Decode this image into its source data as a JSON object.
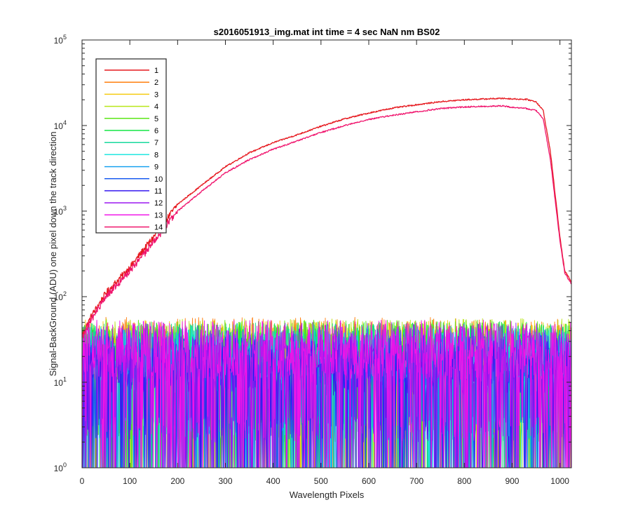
{
  "chart_data": {
    "type": "line",
    "title": "s2016051913_img.mat int time = 4 sec  NaN nm BS02",
    "xlabel": "Wavelength Pixels",
    "ylabel": "Signal-BackGround (ADU) one pixel down the track direction",
    "xlim": [
      0,
      1024
    ],
    "ylim": [
      1,
      100000
    ],
    "yscale": "log",
    "xticks": [
      "0",
      "100",
      "200",
      "300",
      "400",
      "500",
      "600",
      "700",
      "800",
      "900",
      "1000"
    ],
    "yticks": [
      {
        "base": "10",
        "exp": "0"
      },
      {
        "base": "10",
        "exp": "1"
      },
      {
        "base": "10",
        "exp": "2"
      },
      {
        "base": "10",
        "exp": "3"
      },
      {
        "base": "10",
        "exp": "4"
      },
      {
        "base": "10",
        "exp": "5"
      }
    ],
    "grid": false,
    "legend_position": "top-left",
    "series": [
      {
        "name": "1",
        "color": "#e6191f",
        "profile": "signal",
        "x": [
          0,
          20,
          50,
          100,
          150,
          200,
          250,
          300,
          350,
          400,
          450,
          500,
          550,
          600,
          650,
          700,
          750,
          800,
          850,
          880,
          900,
          930,
          950,
          965,
          980,
          1000,
          1010,
          1024
        ],
        "y": [
          35,
          60,
          110,
          220,
          500,
          1200,
          2000,
          3300,
          4800,
          6300,
          7800,
          9800,
          12000,
          14000,
          16000,
          17500,
          19000,
          20000,
          20500,
          20800,
          20500,
          20200,
          19000,
          15000,
          5000,
          500,
          200,
          150
        ]
      },
      {
        "name": "2",
        "color": "#ff7f0f",
        "profile": "noise",
        "level": 28
      },
      {
        "name": "3",
        "color": "#f5cb11",
        "profile": "noise",
        "level": 26
      },
      {
        "name": "4",
        "color": "#b8e61a",
        "profile": "noise",
        "level": 27
      },
      {
        "name": "5",
        "color": "#5ce617",
        "profile": "noise",
        "level": 26
      },
      {
        "name": "6",
        "color": "#14e645",
        "profile": "noise",
        "level": 25
      },
      {
        "name": "7",
        "color": "#17d99d",
        "profile": "noise",
        "level": 24
      },
      {
        "name": "8",
        "color": "#1de6e0",
        "profile": "noise",
        "level": 22
      },
      {
        "name": "9",
        "color": "#1aa3f0",
        "profile": "noise",
        "level": 20
      },
      {
        "name": "10",
        "color": "#1a5cf0",
        "profile": "noise",
        "level": 18
      },
      {
        "name": "11",
        "color": "#3417f0",
        "profile": "noise",
        "level": 17
      },
      {
        "name": "12",
        "color": "#9b17f0",
        "profile": "noise",
        "level": 24
      },
      {
        "name": "13",
        "color": "#f014e8",
        "profile": "noise",
        "level": 26
      },
      {
        "name": "14",
        "color": "#f0166e",
        "profile": "signal",
        "x": [
          0,
          20,
          50,
          100,
          150,
          200,
          250,
          300,
          350,
          400,
          450,
          500,
          550,
          600,
          650,
          700,
          750,
          800,
          850,
          880,
          900,
          930,
          950,
          965,
          980,
          1000,
          1010,
          1024
        ],
        "y": [
          33,
          55,
          100,
          200,
          430,
          1000,
          1700,
          2800,
          4000,
          5300,
          6600,
          8300,
          10000,
          11800,
          13200,
          14500,
          15800,
          16500,
          16800,
          17000,
          16300,
          15800,
          15000,
          12000,
          4000,
          450,
          190,
          140
        ]
      }
    ]
  }
}
